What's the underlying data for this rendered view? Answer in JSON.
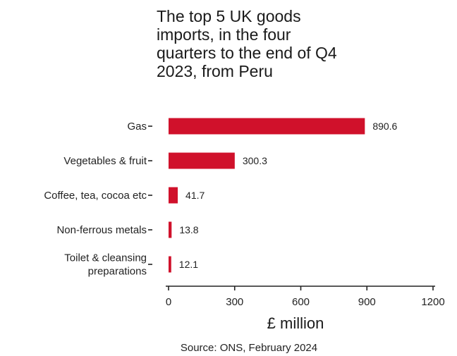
{
  "chart_data": {
    "type": "bar",
    "orientation": "horizontal",
    "title_lines": [
      "The top 5 UK goods",
      "imports, in the four",
      "quarters to the end of Q4",
      "2023, from Peru"
    ],
    "categories": [
      [
        "Gas"
      ],
      [
        "Vegetables & fruit"
      ],
      [
        "Coffee, tea, cocoa etc"
      ],
      [
        "Non-ferrous metals"
      ],
      [
        "Toilet & cleansing",
        "preparations"
      ]
    ],
    "values": [
      890.6,
      300.3,
      41.7,
      13.8,
      12.1
    ],
    "value_labels": [
      "890.6",
      "300.3",
      "41.7",
      "13.8",
      "12.1"
    ],
    "xlabel": "£ million",
    "xlim": [
      0,
      1200
    ],
    "xticks": [
      0,
      300,
      600,
      900,
      1200
    ],
    "source": "Source: ONS, February 2024",
    "bar_color": "#d0112b",
    "grid": false,
    "legend": "none"
  }
}
